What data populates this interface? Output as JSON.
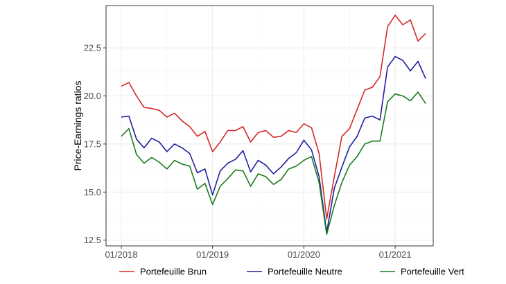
{
  "chart_data": {
    "type": "line",
    "ylabel": "Price-Earnings ratios",
    "xlabel": "",
    "y_ticks": [
      12.5,
      15.0,
      17.5,
      20.0,
      22.5
    ],
    "y_tick_labels": [
      "12.5",
      "15.0",
      "17.5",
      "20.0",
      "22.5"
    ],
    "ylim": [
      12.2,
      24.7
    ],
    "x_ticks": [
      "2018-01",
      "2019-01",
      "2020-01",
      "2021-01"
    ],
    "x_tick_labels": [
      "01/2018",
      "01/2019",
      "01/2020",
      "01/2021"
    ],
    "xlim": [
      "2017-11",
      "2021-06"
    ],
    "legend_position": "bottom",
    "grid": true,
    "x": [
      "2018-01",
      "2018-02",
      "2018-03",
      "2018-04",
      "2018-05",
      "2018-06",
      "2018-07",
      "2018-08",
      "2018-09",
      "2018-10",
      "2018-11",
      "2018-12",
      "2019-01",
      "2019-02",
      "2019-03",
      "2019-04",
      "2019-05",
      "2019-06",
      "2019-07",
      "2019-08",
      "2019-09",
      "2019-10",
      "2019-11",
      "2019-12",
      "2020-01",
      "2020-02",
      "2020-03",
      "2020-04",
      "2020-05",
      "2020-06",
      "2020-07",
      "2020-08",
      "2020-09",
      "2020-10",
      "2020-11",
      "2020-12",
      "2021-01",
      "2021-02",
      "2021-03",
      "2021-04",
      "2021-05"
    ],
    "series": [
      {
        "name": "Portefeuille Brun",
        "color": "#d62728",
        "values": [
          20.5,
          20.7,
          20.0,
          19.4,
          19.35,
          19.25,
          18.9,
          19.1,
          18.7,
          18.4,
          17.9,
          18.15,
          17.1,
          17.6,
          18.2,
          18.2,
          18.4,
          17.6,
          18.1,
          18.2,
          17.85,
          17.9,
          18.2,
          18.1,
          18.55,
          18.35,
          17.0,
          13.6,
          15.8,
          17.9,
          18.3,
          19.3,
          20.3,
          20.45,
          21.0,
          23.6,
          24.2,
          23.7,
          23.95,
          22.85,
          23.25
        ]
      },
      {
        "name": "Portefeuille Neutre",
        "color": "#1f1f9f",
        "values": [
          18.9,
          18.95,
          17.75,
          17.3,
          17.8,
          17.6,
          17.1,
          17.5,
          17.3,
          17.0,
          16.0,
          16.2,
          14.85,
          16.1,
          16.5,
          16.7,
          17.15,
          16.05,
          16.65,
          16.4,
          15.95,
          16.3,
          16.75,
          17.05,
          17.7,
          17.2,
          15.8,
          12.9,
          15.2,
          16.3,
          17.35,
          17.9,
          18.85,
          18.95,
          18.75,
          21.5,
          22.05,
          21.85,
          21.3,
          21.8,
          20.9
        ]
      },
      {
        "name": "Portefeuille Vert",
        "color": "#1a7a1a",
        "values": [
          17.9,
          18.3,
          16.95,
          16.5,
          16.8,
          16.55,
          16.2,
          16.65,
          16.45,
          16.35,
          15.15,
          15.45,
          14.35,
          15.3,
          15.7,
          16.15,
          16.1,
          15.3,
          15.95,
          15.8,
          15.4,
          15.65,
          16.2,
          16.35,
          16.65,
          16.85,
          15.5,
          12.8,
          14.3,
          15.5,
          16.4,
          16.85,
          17.5,
          17.65,
          17.65,
          19.7,
          20.1,
          20.0,
          19.75,
          20.2,
          19.6
        ]
      }
    ]
  }
}
